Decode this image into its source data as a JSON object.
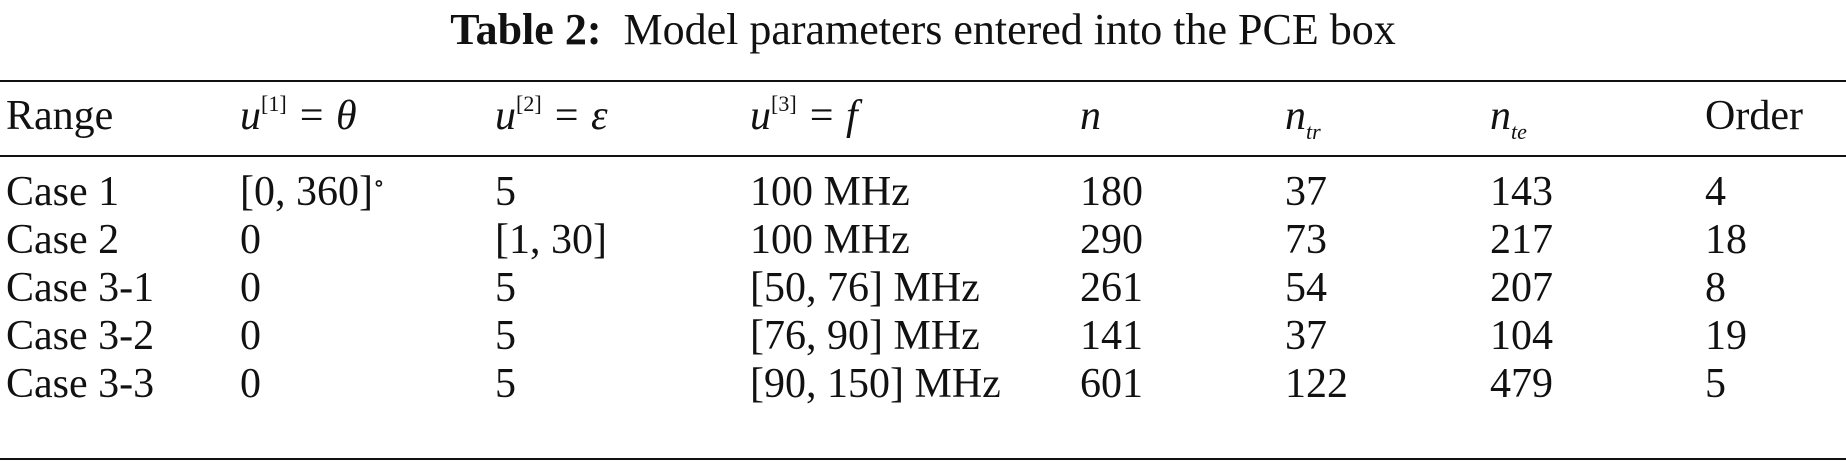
{
  "caption": {
    "label": "Table 2:",
    "text": "Model parameters entered into the PCE box"
  },
  "header": {
    "range": "Range",
    "u1": {
      "base": "u",
      "sup": "[1]",
      "rhs": " = θ"
    },
    "u2": {
      "base": "u",
      "sup": "[2]",
      "rhs": " = ε"
    },
    "u3": {
      "base": "u",
      "sup": "[3]",
      "rhs": " = f"
    },
    "n": "n",
    "ntr": {
      "base": "n",
      "sub": "tr"
    },
    "nte": {
      "base": "n",
      "sub": "te"
    },
    "order": "Order"
  },
  "rows": [
    {
      "range": "Case 1",
      "u1": "[0, 360]",
      "u1_degree": "∘",
      "u2": "5",
      "u3": "100 MHz",
      "n": "180",
      "ntr": "37",
      "nte": "143",
      "order": "4"
    },
    {
      "range": "Case 2",
      "u1": "0",
      "u1_degree": "",
      "u2": "[1, 30]",
      "u3": "100 MHz",
      "n": "290",
      "ntr": "73",
      "nte": "217",
      "order": "18"
    },
    {
      "range": "Case 3-1",
      "u1": "0",
      "u1_degree": "",
      "u2": "5",
      "u3": "[50, 76] MHz",
      "n": "261",
      "ntr": "54",
      "nte": "207",
      "order": "8"
    },
    {
      "range": "Case 3-2",
      "u1": "0",
      "u1_degree": "",
      "u2": "5",
      "u3": "[76, 90] MHz",
      "n": "141",
      "ntr": "37",
      "nte": "104",
      "order": "19"
    },
    {
      "range": "Case 3-3",
      "u1": "0",
      "u1_degree": "",
      "u2": "5",
      "u3": "[90, 150] MHz",
      "n": "601",
      "ntr": "122",
      "nte": "479",
      "order": "5"
    }
  ]
}
